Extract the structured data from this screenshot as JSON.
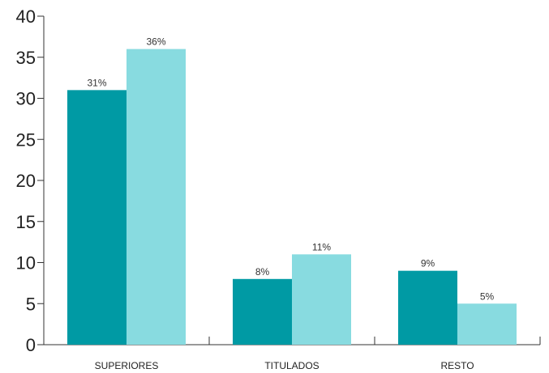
{
  "chart_data": {
    "type": "bar",
    "categories": [
      "SUPERIORES",
      "TITULADOS",
      "RESTO"
    ],
    "series": [
      {
        "values": [
          31,
          8,
          9
        ],
        "labels": [
          "31%",
          "8%",
          "9%"
        ],
        "color": "#009aa4"
      },
      {
        "values": [
          36,
          11,
          5
        ],
        "labels": [
          "36%",
          "11%",
          "5%"
        ],
        "color": "#88dbe0"
      }
    ],
    "ylim": [
      0,
      40
    ],
    "yticks": [
      "0",
      "5",
      "10",
      "15",
      "20",
      "25",
      "30",
      "35",
      "40"
    ],
    "ytick_values": [
      0,
      5,
      10,
      15,
      20,
      25,
      30,
      35,
      40
    ],
    "grid": false,
    "legend": "none",
    "axis_color": "#333333"
  }
}
